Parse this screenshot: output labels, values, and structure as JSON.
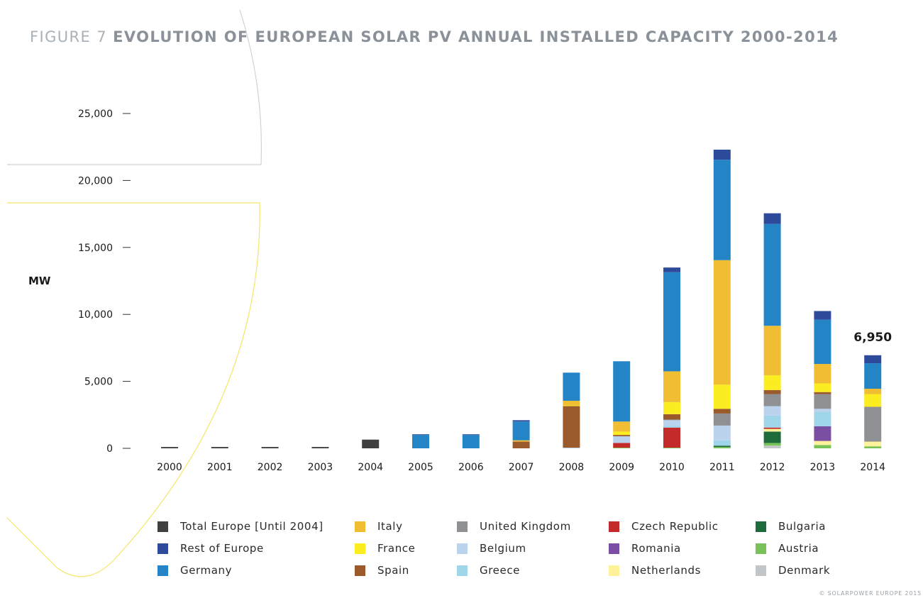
{
  "title": {
    "prefix": "FIGURE 7",
    "main": "EVOLUTION OF EUROPEAN SOLAR PV ANNUAL INSTALLED CAPACITY 2000-2014"
  },
  "copyright": "© SOLARPOWER EUROPE 2015",
  "chart_data": {
    "type": "bar",
    "stacked": true,
    "title": "EVOLUTION OF EUROPEAN SOLAR PV ANNUAL INSTALLED CAPACITY 2000-2014",
    "ylabel": "MW",
    "xlabel": "",
    "ylim": [
      0,
      25000
    ],
    "yticks": [
      0,
      5000,
      10000,
      15000,
      20000,
      25000
    ],
    "ytick_labels": [
      "0",
      "5,000",
      "10,000",
      "15,000",
      "20,000",
      "25,000"
    ],
    "categories": [
      "2000",
      "2001",
      "2002",
      "2003",
      "2004",
      "2005",
      "2006",
      "2007",
      "2008",
      "2009",
      "2010",
      "2011",
      "2012",
      "2013",
      "2014"
    ],
    "annotations": [
      {
        "category": "2014",
        "text": "6,950"
      }
    ],
    "series": [
      {
        "name": "Total Europe [Until 2004]",
        "color": "#404040",
        "values": [
          100,
          100,
          100,
          100,
          650,
          0,
          0,
          0,
          0,
          0,
          0,
          0,
          0,
          0,
          0
        ]
      },
      {
        "name": "Denmark",
        "color": "#c3c6c9",
        "values": [
          0,
          0,
          0,
          0,
          0,
          0,
          0,
          0,
          0,
          0,
          0,
          0,
          200,
          0,
          0
        ]
      },
      {
        "name": "Austria",
        "color": "#79c257",
        "values": [
          0,
          0,
          0,
          0,
          0,
          0,
          0,
          0,
          0,
          50,
          50,
          100,
          200,
          250,
          150
        ]
      },
      {
        "name": "Bulgaria",
        "color": "#1d6b3a",
        "values": [
          0,
          0,
          0,
          0,
          0,
          0,
          0,
          0,
          0,
          0,
          0,
          100,
          850,
          0,
          0
        ]
      },
      {
        "name": "Netherlands",
        "color": "#fff29a",
        "values": [
          0,
          0,
          0,
          0,
          0,
          0,
          0,
          0,
          0,
          0,
          0,
          0,
          200,
          300,
          350
        ]
      },
      {
        "name": "Romania",
        "color": "#7a4fa3",
        "values": [
          0,
          0,
          0,
          0,
          0,
          0,
          0,
          0,
          0,
          0,
          0,
          0,
          0,
          1100,
          0
        ]
      },
      {
        "name": "Czech Republic",
        "color": "#c42a2a",
        "values": [
          0,
          0,
          0,
          0,
          0,
          0,
          0,
          0,
          0,
          350,
          1500,
          0,
          100,
          0,
          0
        ]
      },
      {
        "name": "Greece",
        "color": "#9fd6ea",
        "values": [
          0,
          0,
          0,
          0,
          0,
          0,
          0,
          0,
          0,
          0,
          150,
          400,
          900,
          1050,
          0
        ]
      },
      {
        "name": "Belgium",
        "color": "#bcd3ee",
        "values": [
          0,
          0,
          0,
          0,
          0,
          0,
          0,
          0,
          50,
          500,
          400,
          1100,
          700,
          250,
          0
        ]
      },
      {
        "name": "United Kingdom",
        "color": "#8e9093",
        "values": [
          0,
          0,
          0,
          0,
          0,
          0,
          0,
          0,
          0,
          0,
          50,
          900,
          900,
          1100,
          2600
        ]
      },
      {
        "name": "Spain",
        "color": "#9a5a2b",
        "values": [
          0,
          0,
          0,
          0,
          0,
          0,
          0,
          500,
          3100,
          100,
          400,
          350,
          300,
          150,
          0
        ]
      },
      {
        "name": "France",
        "color": "#fbed1f",
        "values": [
          0,
          0,
          0,
          0,
          0,
          0,
          0,
          0,
          50,
          250,
          900,
          1800,
          1100,
          650,
          950
        ]
      },
      {
        "name": "Italy",
        "color": "#f0bd33",
        "values": [
          0,
          0,
          0,
          0,
          0,
          0,
          0,
          100,
          350,
          750,
          2300,
          9300,
          3700,
          1450,
          400
        ]
      },
      {
        "name": "Germany",
        "color": "#2384c6",
        "values": [
          0,
          0,
          0,
          0,
          0,
          1000,
          1000,
          1400,
          2100,
          4500,
          7400,
          7500,
          7600,
          3300,
          1900
        ]
      },
      {
        "name": "Rest of Europe",
        "color": "#2e4a9a",
        "values": [
          0,
          0,
          0,
          0,
          0,
          50,
          50,
          100,
          0,
          0,
          350,
          750,
          800,
          650,
          600
        ]
      }
    ]
  },
  "legend": [
    {
      "label": "Total Europe [Until 2004]",
      "color": "#404040"
    },
    {
      "label": "Rest of Europe",
      "color": "#2e4a9a"
    },
    {
      "label": "Germany",
      "color": "#2384c6"
    },
    {
      "label": "Italy",
      "color": "#f0bd33"
    },
    {
      "label": "France",
      "color": "#fbed1f"
    },
    {
      "label": "Spain",
      "color": "#9a5a2b"
    },
    {
      "label": "United Kingdom",
      "color": "#8e9093"
    },
    {
      "label": "Belgium",
      "color": "#bcd3ee"
    },
    {
      "label": "Greece",
      "color": "#9fd6ea"
    },
    {
      "label": "Czech Republic",
      "color": "#c42a2a"
    },
    {
      "label": "Romania",
      "color": "#7a4fa3"
    },
    {
      "label": "Netherlands",
      "color": "#fff29a"
    },
    {
      "label": "Bulgaria",
      "color": "#1d6b3a"
    },
    {
      "label": "Austria",
      "color": "#79c257"
    },
    {
      "label": "Denmark",
      "color": "#c3c6c9"
    }
  ]
}
